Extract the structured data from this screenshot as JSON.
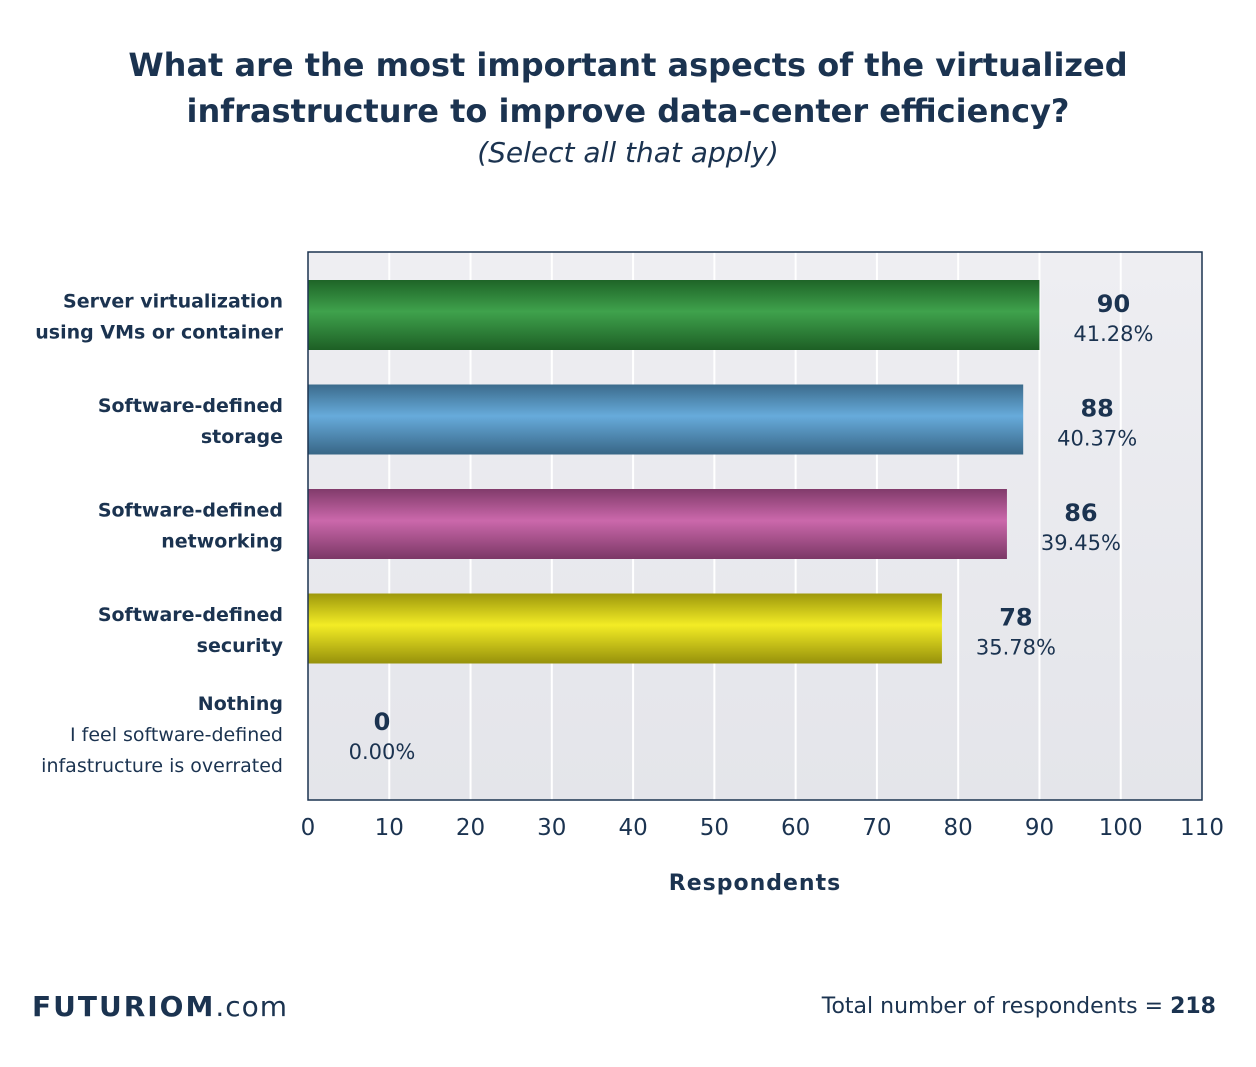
{
  "header": {
    "title_line1": "What are the most important aspects of the virtualized",
    "title_line2": "infrastructure to improve data-center efficiency?",
    "subtitle": "(Select all that apply)"
  },
  "footer": {
    "brand": "FUTURIOM",
    "domain": ".com",
    "total_label": "Total number of respondents =",
    "total_value": "218"
  },
  "chart_data": {
    "type": "bar",
    "orientation": "horizontal",
    "xlabel": "Respondents",
    "xlim": [
      0,
      110
    ],
    "xticks": [
      0,
      10,
      20,
      30,
      40,
      50,
      60,
      70,
      80,
      90,
      100,
      110
    ],
    "grid": true,
    "categories": [
      {
        "lines": [
          {
            "text": "Server virtualization",
            "bold": true
          },
          {
            "text": "using VMs or container",
            "bold": true
          }
        ]
      },
      {
        "lines": [
          {
            "text": "Software-defined",
            "bold": true
          },
          {
            "text": "storage",
            "bold": true
          }
        ]
      },
      {
        "lines": [
          {
            "text": "Software-defined",
            "bold": true
          },
          {
            "text": "networking",
            "bold": true
          }
        ]
      },
      {
        "lines": [
          {
            "text": "Software-defined",
            "bold": true
          },
          {
            "text": "security",
            "bold": true
          }
        ]
      },
      {
        "lines": [
          {
            "text": "Nothing",
            "bold": true
          },
          {
            "text": "I feel software-defined",
            "bold": false
          },
          {
            "text": "infastructure is overrated",
            "bold": false
          }
        ]
      }
    ],
    "values": [
      90,
      88,
      86,
      78,
      0
    ],
    "percent_labels": [
      "41.28%",
      "40.37%",
      "39.45%",
      "35.78%",
      "0.00%"
    ],
    "bar_colors": [
      "#2e9a3c",
      "#5aa4d8",
      "#c75ba4",
      "#f2ea12",
      "#cccccc"
    ]
  }
}
